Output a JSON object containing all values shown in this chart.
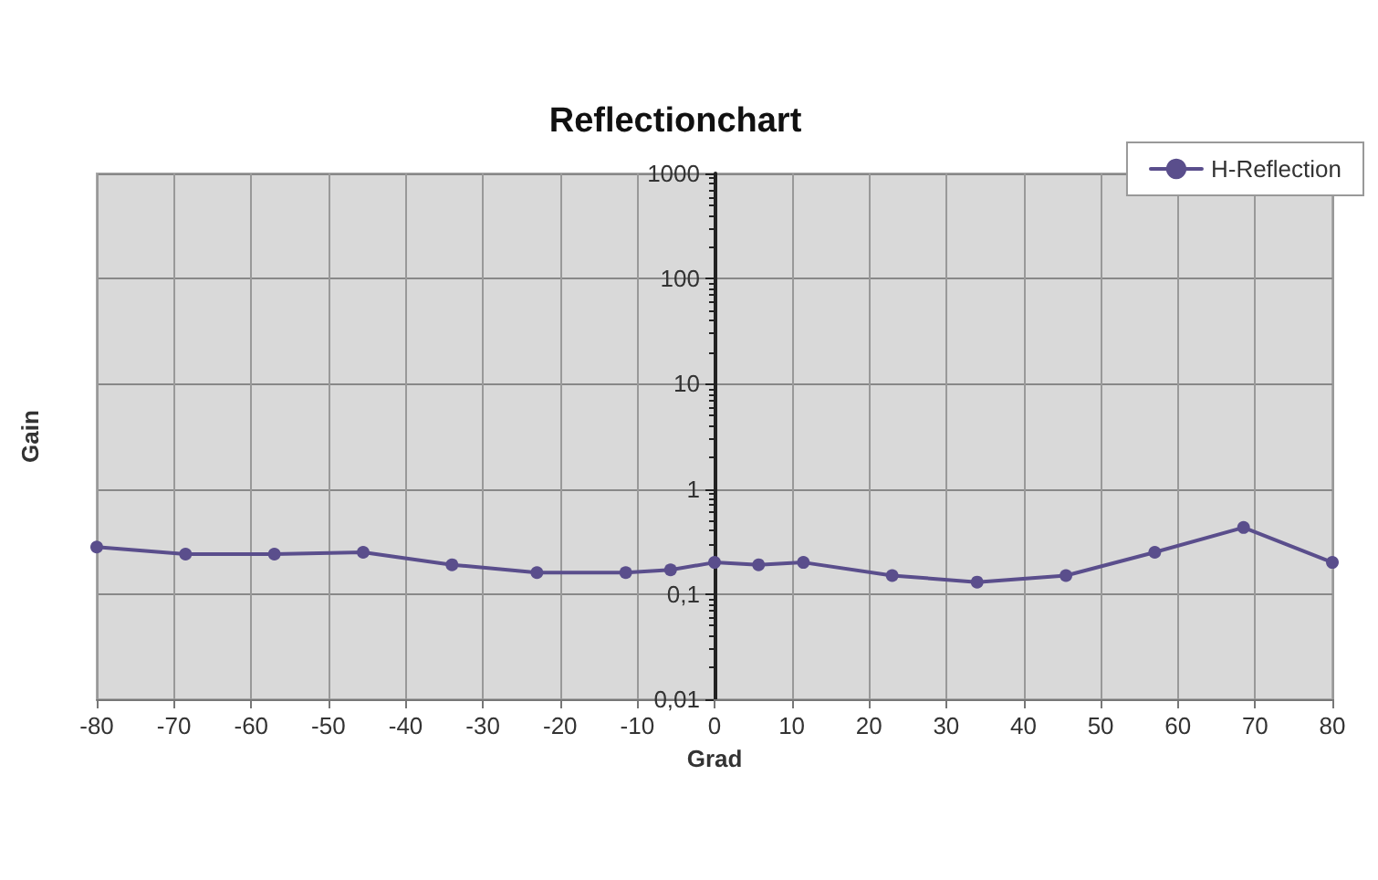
{
  "chart_data": {
    "type": "line",
    "title": "Reflectionchart",
    "xlabel": "Grad",
    "ylabel": "Gain",
    "series": [
      {
        "name": "H-Reflection",
        "color": "#5a4e8c",
        "x": [
          -80,
          -68.5,
          -57,
          -45.5,
          -34,
          -23,
          -11.5,
          -5.7,
          0,
          5.7,
          11.5,
          23,
          34,
          45.5,
          57,
          68.5,
          80
        ],
        "values": [
          0.28,
          0.24,
          0.24,
          0.25,
          0.19,
          0.16,
          0.16,
          0.17,
          0.2,
          0.19,
          0.2,
          0.15,
          0.13,
          0.15,
          0.25,
          0.43,
          0.2
        ]
      }
    ],
    "xlim": [
      -80,
      80
    ],
    "xticks": [
      -80,
      -70,
      -60,
      -50,
      -40,
      -30,
      -20,
      -10,
      0,
      10,
      20,
      30,
      40,
      50,
      60,
      70,
      80
    ],
    "ylim": [
      0.01,
      1000
    ],
    "yticks": [
      {
        "value": 0.01,
        "label": "0,01"
      },
      {
        "value": 0.1,
        "label": "0,1"
      },
      1,
      10,
      100,
      1000
    ],
    "log": "y",
    "grid": true,
    "legend": "top right",
    "marker": "circle",
    "line_style": "solid"
  }
}
